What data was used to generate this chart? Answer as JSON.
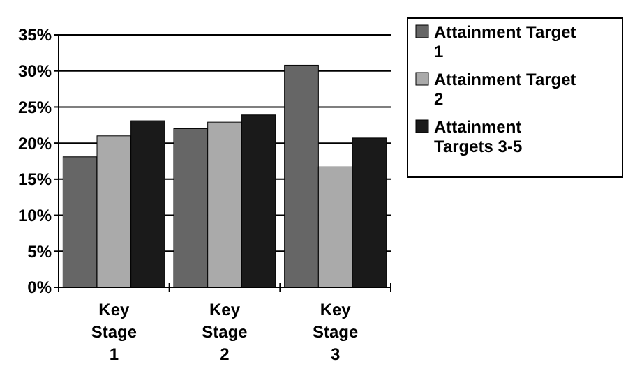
{
  "chart_data": {
    "type": "bar",
    "categories": [
      "Key Stage 1",
      "Key Stage 2",
      "Key Stage 3"
    ],
    "series": [
      {
        "name": "Attainment Target 1",
        "color": "#666666",
        "values": [
          18.1,
          22,
          30.8
        ]
      },
      {
        "name": "Attainment Target 2",
        "color": "#aaaaaa",
        "values": [
          21,
          22.9,
          16.7
        ]
      },
      {
        "name": "Attainment Targets 3-5",
        "color": "#1a1a1a",
        "values": [
          23.1,
          23.9,
          20.7
        ]
      }
    ],
    "ylim": [
      0,
      35
    ],
    "yticks": [
      {
        "value": 0,
        "label": "0%"
      },
      {
        "value": 5,
        "label": "5%"
      },
      {
        "value": 10,
        "label": "10%"
      },
      {
        "value": 15,
        "label": "15%"
      },
      {
        "value": 20,
        "label": "20%"
      },
      {
        "value": 25,
        "label": "25%"
      },
      {
        "value": 30,
        "label": "30%"
      },
      {
        "value": 35,
        "label": "35%"
      }
    ],
    "grid": "y",
    "legend": "right"
  }
}
